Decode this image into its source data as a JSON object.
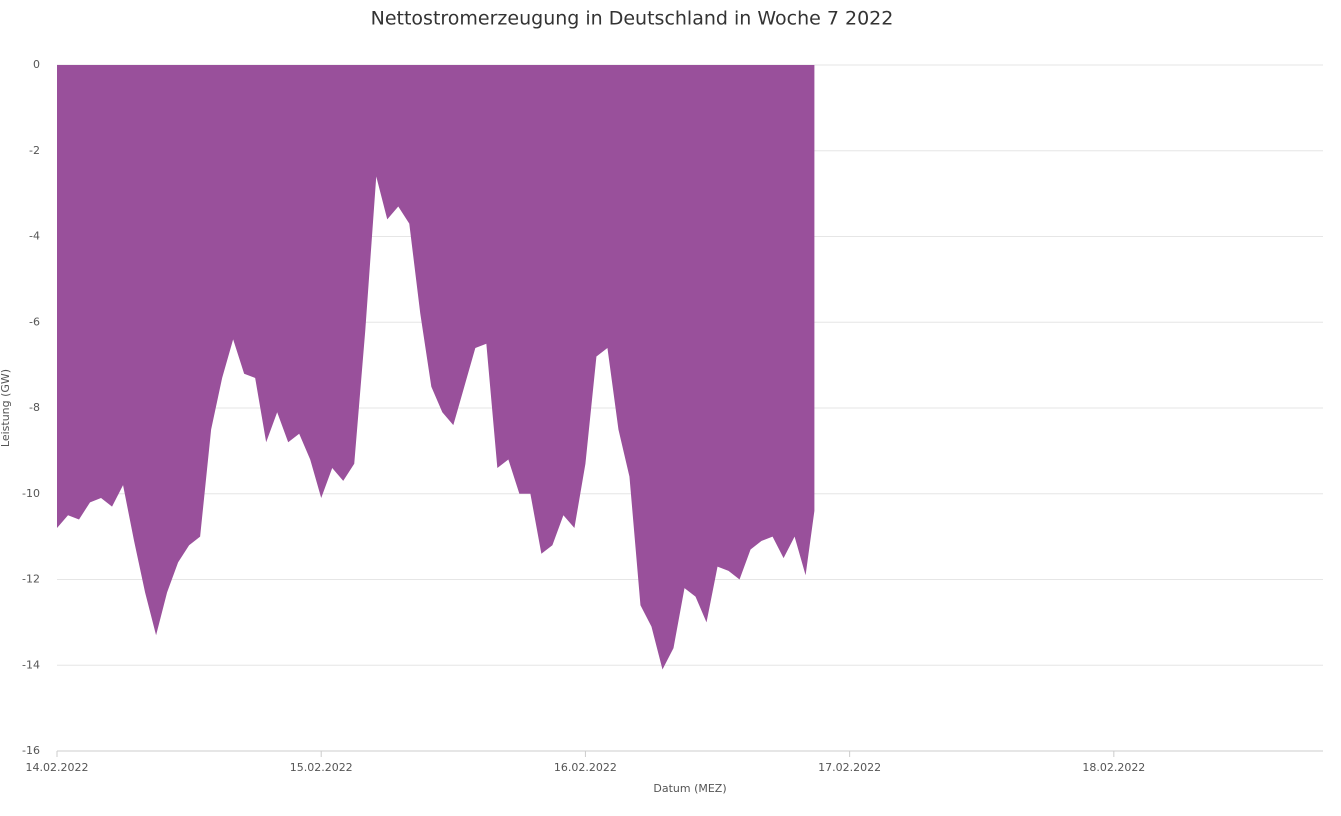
{
  "chart_data": {
    "type": "area",
    "title": "Nettostromerzeugung in Deutschland in Woche 7 2022",
    "xlabel": "Datum (MEZ)",
    "ylabel": "Leistung (GW)",
    "x": [
      0,
      1,
      2,
      3,
      4,
      5,
      6,
      7,
      8,
      9,
      10,
      11,
      12,
      13,
      14,
      15,
      16,
      17,
      18,
      19,
      20,
      21,
      22,
      23,
      24,
      25,
      26,
      27,
      28,
      29,
      30,
      31,
      32,
      33,
      34,
      35,
      36,
      37,
      38,
      39,
      40,
      41,
      42,
      43,
      44,
      45,
      46,
      47,
      48,
      49,
      50,
      51,
      52,
      53,
      54,
      55,
      56,
      57,
      58,
      59,
      60,
      61,
      62,
      63,
      64,
      65,
      66,
      67,
      68,
      68.8
    ],
    "series": [
      {
        "color": "#99509b",
        "values": [
          -10.8,
          -10.5,
          -10.6,
          -10.2,
          -10.1,
          -10.3,
          -9.8,
          -11.1,
          -12.3,
          -13.3,
          -12.3,
          -11.6,
          -11.2,
          -11.0,
          -8.5,
          -7.3,
          -6.4,
          -7.2,
          -7.3,
          -8.8,
          -8.1,
          -8.8,
          -8.6,
          -9.2,
          -10.1,
          -9.4,
          -9.7,
          -9.3,
          -6.2,
          -2.6,
          -3.6,
          -3.3,
          -3.7,
          -5.8,
          -7.5,
          -8.1,
          -8.4,
          -7.5,
          -6.6,
          -6.5,
          -9.4,
          -9.2,
          -10.0,
          -10.0,
          -11.4,
          -11.2,
          -10.5,
          -10.8,
          -9.3,
          -6.8,
          -6.6,
          -8.5,
          -9.6,
          -12.6,
          -13.1,
          -14.1,
          -13.6,
          -12.2,
          -12.4,
          -13.0,
          -11.7,
          -11.8,
          -12.0,
          -11.3,
          -11.1,
          -11.0,
          -11.5,
          -11.0,
          -11.9,
          -10.4
        ]
      }
    ],
    "xlim": [
      0,
      115
    ],
    "xticks": [
      {
        "value": 0,
        "label": "14.02.2022"
      },
      {
        "value": 24,
        "label": "15.02.2022"
      },
      {
        "value": 48,
        "label": "16.02.2022"
      },
      {
        "value": 72,
        "label": "17.02.2022"
      },
      {
        "value": 96,
        "label": "18.02.2022"
      }
    ],
    "ylim": [
      -16,
      0
    ],
    "yticks": [
      0,
      -2,
      -4,
      -6,
      -8,
      -10,
      -12,
      -14,
      -16
    ],
    "grid": true
  }
}
